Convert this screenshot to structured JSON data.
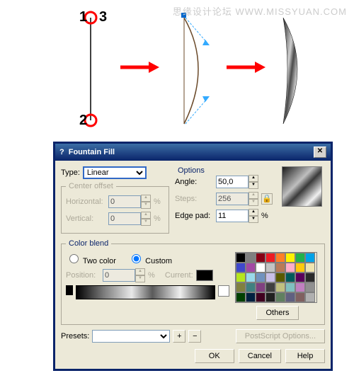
{
  "watermark": "思缘设计论坛  WWW.MISSYUAN.COM",
  "illustration": {
    "labels": [
      "1",
      "2",
      "3"
    ],
    "arrow_color": "#ff0000",
    "marker_stroke": "#ff0000",
    "node_fill": "#0066cc"
  },
  "dialog": {
    "title": "Fountain Fill",
    "type_label": "Type:",
    "type_value": "Linear",
    "center_offset": {
      "legend": "Center offset",
      "horizontal_label": "Horizontal:",
      "horizontal_value": "0",
      "h_unit": "%",
      "vertical_label": "Vertical:",
      "vertical_value": "0",
      "v_unit": "%"
    },
    "options": {
      "legend": "Options",
      "angle_label": "Angle:",
      "angle_value": "50,0",
      "steps_label": "Steps:",
      "steps_value": "256",
      "edge_label": "Edge pad:",
      "edge_value": "11",
      "edge_unit": "%"
    },
    "color_blend": {
      "legend": "Color blend",
      "two_color": "Two color",
      "custom": "Custom",
      "position_label": "Position:",
      "position_value": "0",
      "position_unit": "%",
      "current_label": "Current:",
      "current_color": "#000000",
      "others": "Others"
    },
    "swatch_colors": [
      "#000000",
      "#7f7f7f",
      "#880015",
      "#ed1c24",
      "#ff7f27",
      "#fff200",
      "#22b14c",
      "#00a2e8",
      "#3f48cc",
      "#a349a4",
      "#ffffff",
      "#c3c3c3",
      "#b97a57",
      "#ffaec9",
      "#ffc90e",
      "#efe4b0",
      "#b5e61d",
      "#99d9ea",
      "#7092be",
      "#c8bfe7",
      "#5a5a00",
      "#005a5a",
      "#5a005a",
      "#2a2a2a",
      "#808040",
      "#408080",
      "#804080",
      "#404040",
      "#c0c080",
      "#80c0c0",
      "#c080c0",
      "#909090",
      "#004000",
      "#002040",
      "#400020",
      "#202020",
      "#608060",
      "#606080",
      "#806060",
      "#b0b0b0"
    ],
    "presets_label": "Presets:",
    "postscript": "PostScript Options...",
    "buttons": {
      "ok": "OK",
      "cancel": "Cancel",
      "help": "Help"
    }
  }
}
